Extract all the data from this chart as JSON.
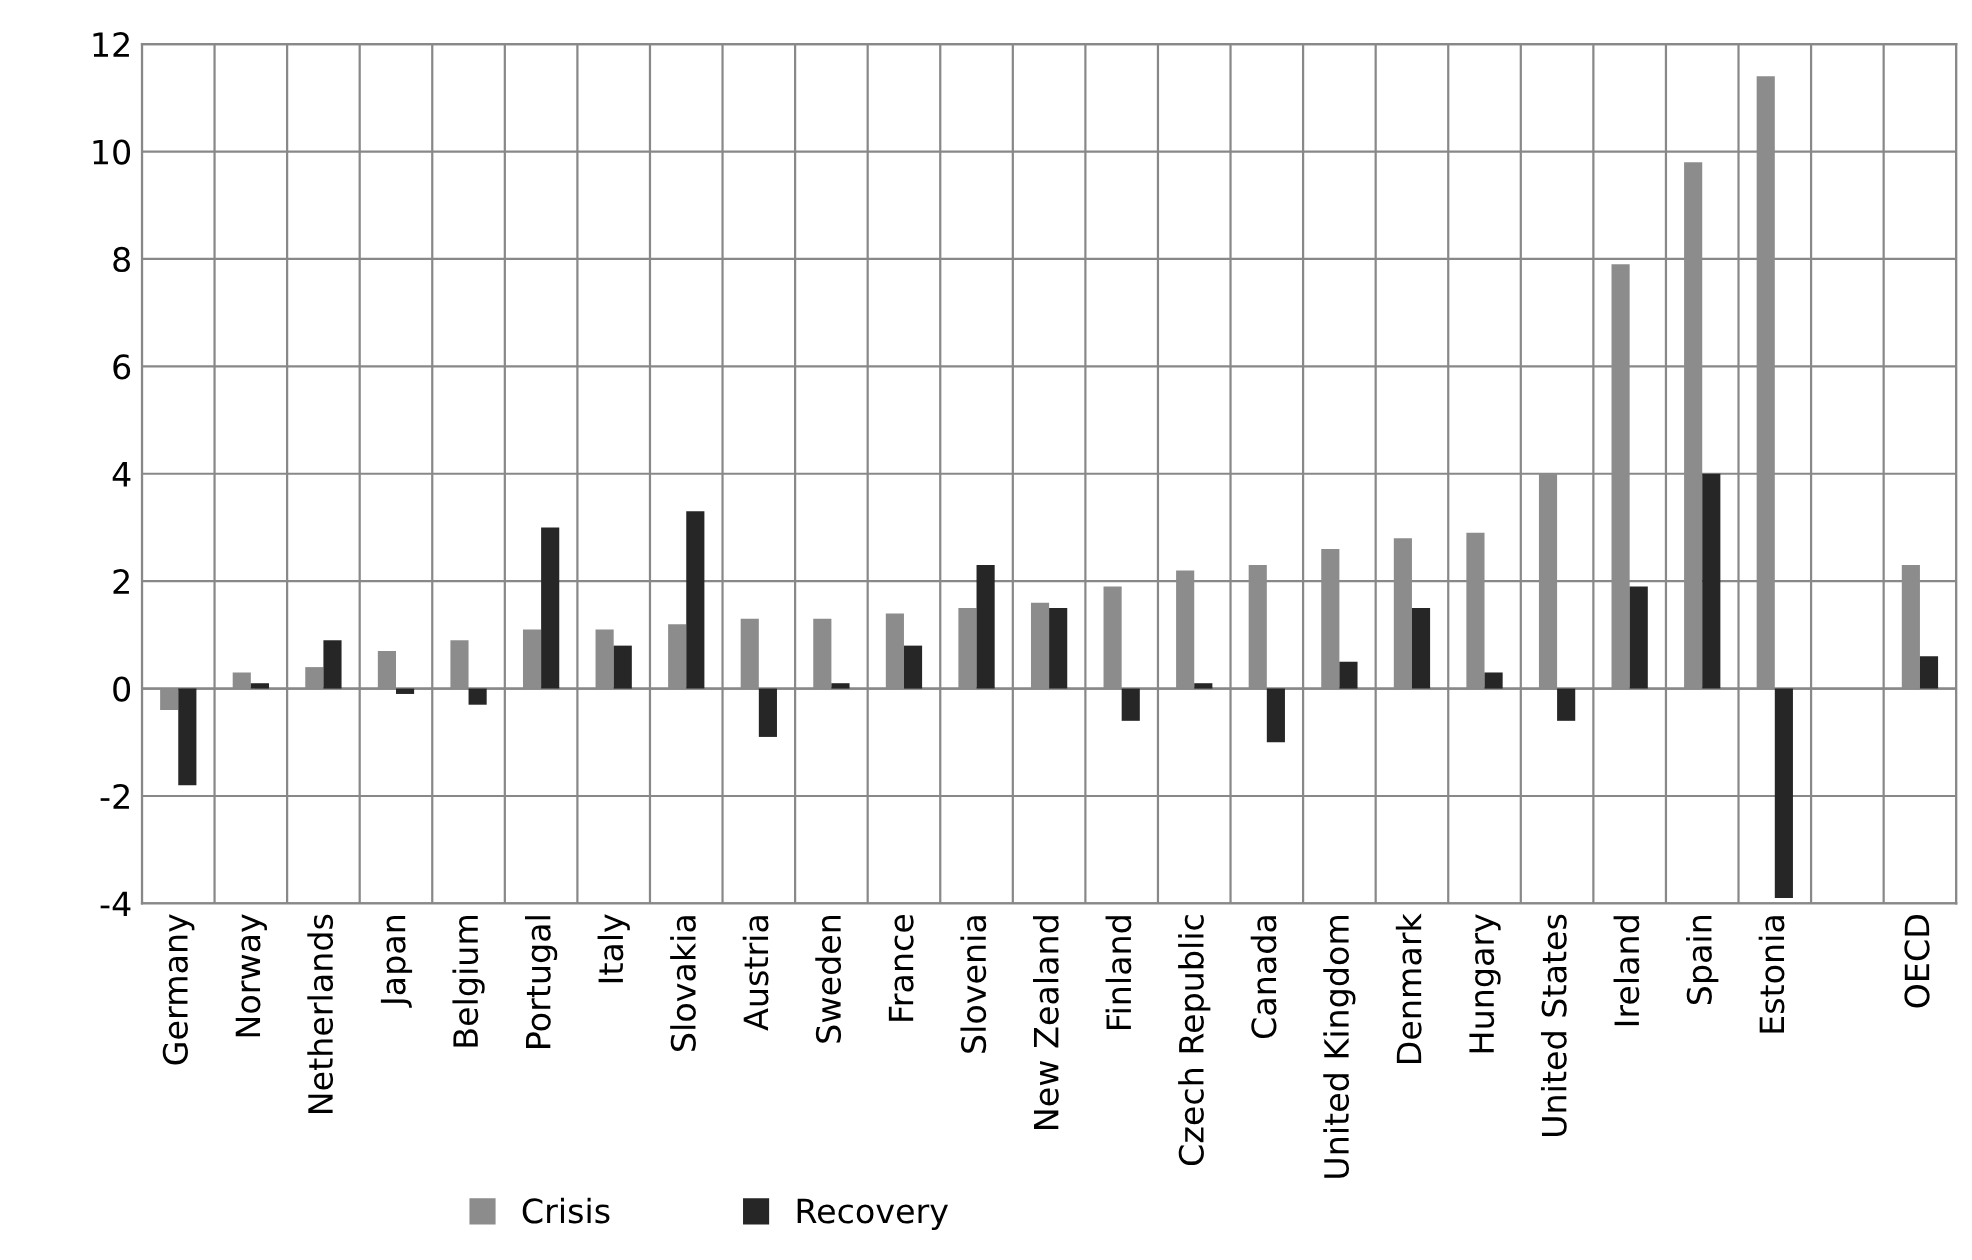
{
  "chart_data": {
    "type": "bar",
    "categories": [
      "Germany",
      "Norway",
      "Netherlands",
      "Japan",
      "Belgium",
      "Portugal",
      "Italy",
      "Slovakia",
      "Austria",
      "Sweden",
      "France",
      "Slovenia",
      "New Zealand",
      "Finland",
      "Czech Republic",
      "Canada",
      "United Kingdom",
      "Denmark",
      "Hungary",
      "United States",
      "Ireland",
      "Spain",
      "Estonia",
      null,
      "OECD"
    ],
    "series": [
      {
        "name": "Crisis",
        "color": "#8c8c8c",
        "values": [
          -0.4,
          0.3,
          0.4,
          0.7,
          0.9,
          1.1,
          1.1,
          1.2,
          1.3,
          1.3,
          1.4,
          1.5,
          1.6,
          1.9,
          2.2,
          2.3,
          2.6,
          2.8,
          2.9,
          4.0,
          7.9,
          9.8,
          11.4,
          null,
          2.3
        ]
      },
      {
        "name": "Recovery",
        "color": "#262626",
        "values": [
          -1.8,
          0.1,
          0.9,
          -0.1,
          -0.3,
          3.0,
          0.8,
          3.3,
          -0.9,
          0.1,
          0.8,
          2.3,
          1.5,
          -0.6,
          0.1,
          -1.0,
          0.5,
          1.5,
          0.3,
          -0.6,
          1.9,
          4.0,
          -3.9,
          null,
          0.6
        ]
      }
    ],
    "ylim": [
      -4,
      12
    ],
    "yticks": [
      -4,
      -2,
      0,
      2,
      4,
      6,
      8,
      10,
      12
    ],
    "grid": true,
    "legend": "bottom"
  }
}
